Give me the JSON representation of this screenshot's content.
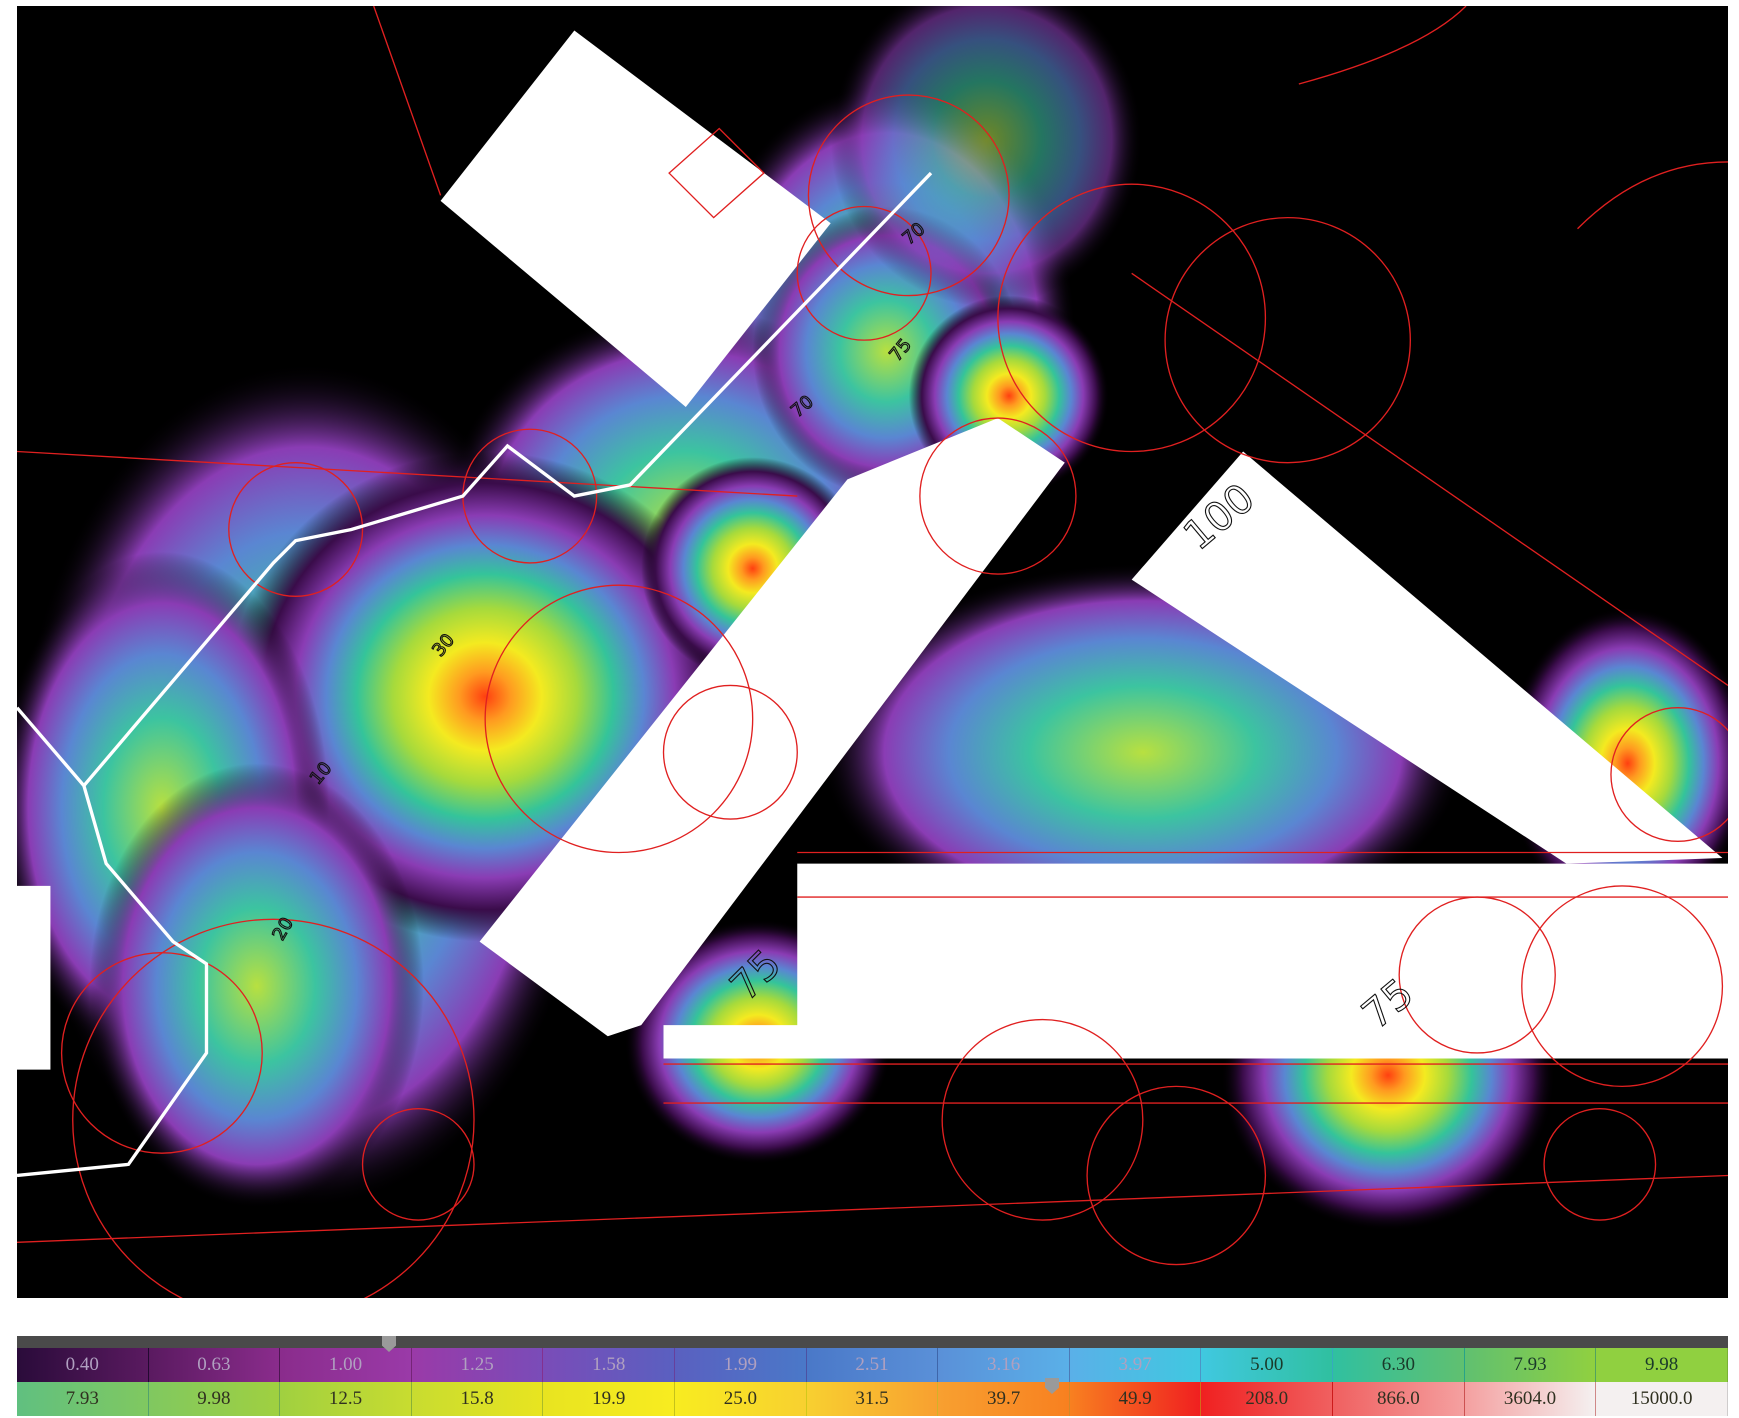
{
  "plan_labels": [
    "75",
    "70",
    "70",
    "10",
    "30",
    "20",
    "100",
    "75",
    "75"
  ],
  "legend": {
    "top_row": [
      "0.40",
      "0.63",
      "1.00",
      "1.25",
      "1.58",
      "1.99",
      "2.51",
      "3.16",
      "3.97",
      "5.00",
      "6.30",
      "7.93",
      "9.98"
    ],
    "bottom_row": [
      "7.93",
      "9.98",
      "12.5",
      "15.8",
      "19.9",
      "25.0",
      "31.5",
      "39.7",
      "49.9",
      "208.0",
      "866.0",
      "3604.0",
      "15000.0"
    ]
  }
}
